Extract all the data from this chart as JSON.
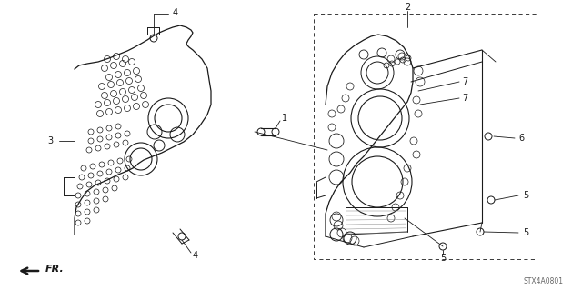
{
  "bg_color": "#ffffff",
  "line_color": "#1a1a1a",
  "part_code": "STX4A0801",
  "fig_w": 6.4,
  "fig_h": 3.19,
  "dpi": 100
}
